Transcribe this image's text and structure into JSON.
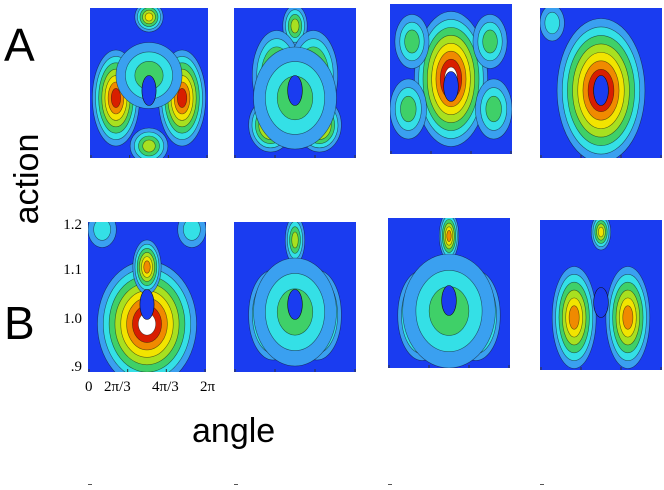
{
  "figure": {
    "row_labels": [
      "A",
      "B"
    ],
    "y_axis_title": "action",
    "x_axis_title": "angle",
    "y_ticks": [
      "1.2",
      "1.1",
      "1.0",
      ".9"
    ],
    "x_ticks": [
      "0",
      "2π/3",
      "4π/3",
      "2π"
    ]
  },
  "colors": {
    "background": "#1a3cf0",
    "levels": [
      "#1a3cf0",
      "#3aa0f0",
      "#34e0e6",
      "#3fd068",
      "#a8e020",
      "#f2e400",
      "#f08a00",
      "#d81e00",
      "#ffffff"
    ]
  }
}
